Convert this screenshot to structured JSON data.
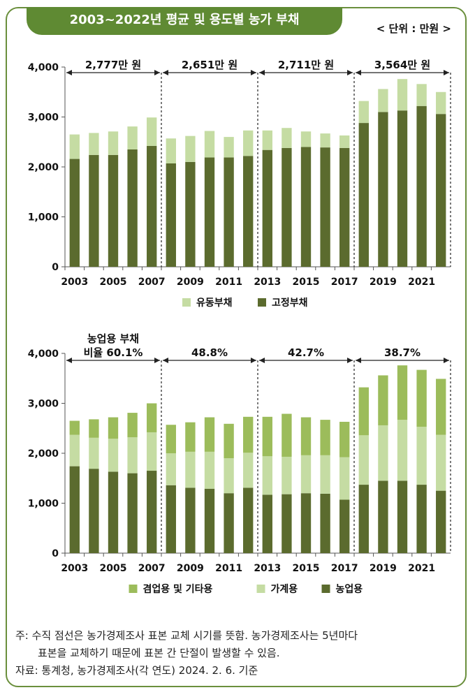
{
  "title": "2003~2022년 평균 및 용도별 농가 부채",
  "unit": "< 단위 : 만원 >",
  "colors": {
    "fixed_debt": "#5b6b2e",
    "current_debt": "#c5dca3",
    "agricultural": "#5b6b2e",
    "household": "#c5dca3",
    "side_business_other": "#9cbc5b",
    "frame": "#6a8f3c"
  },
  "chart_data": [
    {
      "type": "bar",
      "stacked": true,
      "x": [
        2003,
        2004,
        2005,
        2006,
        2007,
        2008,
        2009,
        2010,
        2011,
        2012,
        2013,
        2014,
        2015,
        2016,
        2017,
        2018,
        2019,
        2020,
        2021,
        2022
      ],
      "x_tick_labels": [
        "2003",
        "2005",
        "2007",
        "2009",
        "2011",
        "2013",
        "2015",
        "2017",
        "2019",
        "2021"
      ],
      "y_ticks": [
        "0",
        "1,000",
        "2,000",
        "3,000",
        "4,000"
      ],
      "ylim": [
        0,
        4000
      ],
      "series": [
        {
          "name": "고정부채",
          "color": "#5b6b2e",
          "values": [
            2160,
            2240,
            2240,
            2350,
            2420,
            2070,
            2100,
            2190,
            2190,
            2220,
            2340,
            2380,
            2400,
            2390,
            2380,
            2880,
            3100,
            3130,
            3220,
            3060
          ]
        },
        {
          "name": "유동부채",
          "color": "#c5dca3",
          "values": [
            490,
            440,
            470,
            460,
            570,
            500,
            520,
            530,
            410,
            510,
            390,
            400,
            310,
            280,
            250,
            440,
            460,
            630,
            440,
            440
          ]
        }
      ],
      "legend": [
        "유동부채",
        "고정부채"
      ],
      "legend_order": [
        1,
        0
      ],
      "periods": [
        {
          "start": 2003,
          "end": 2007,
          "label": "2,777만 원"
        },
        {
          "start": 2008,
          "end": 2012,
          "label": "2,651만 원"
        },
        {
          "start": 2013,
          "end": 2017,
          "label": "2,711만 원"
        },
        {
          "start": 2018,
          "end": 2022,
          "label": "3,564만 원"
        }
      ]
    },
    {
      "type": "bar",
      "stacked": true,
      "x": [
        2003,
        2004,
        2005,
        2006,
        2007,
        2008,
        2009,
        2010,
        2011,
        2012,
        2013,
        2014,
        2015,
        2016,
        2017,
        2018,
        2019,
        2020,
        2021,
        2022
      ],
      "x_tick_labels": [
        "2003",
        "2005",
        "2007",
        "2009",
        "2011",
        "2013",
        "2015",
        "2017",
        "2019",
        "2021"
      ],
      "y_ticks": [
        "0",
        "1,000",
        "2,000",
        "3,000",
        "4,000"
      ],
      "ylim": [
        0,
        4000
      ],
      "series": [
        {
          "name": "농업용",
          "color": "#5b6b2e",
          "values": [
            1740,
            1690,
            1630,
            1600,
            1650,
            1360,
            1310,
            1290,
            1200,
            1310,
            1170,
            1180,
            1200,
            1190,
            1070,
            1370,
            1450,
            1450,
            1370,
            1250
          ]
        },
        {
          "name": "가계용",
          "color": "#c5dca3",
          "values": [
            630,
            620,
            660,
            720,
            770,
            640,
            720,
            740,
            700,
            700,
            770,
            750,
            760,
            770,
            850,
            990,
            1110,
            1220,
            1160,
            1120
          ]
        },
        {
          "name": "겸업용 및 기타용",
          "color": "#9cbc5b",
          "values": [
            280,
            370,
            430,
            490,
            580,
            570,
            590,
            690,
            690,
            720,
            790,
            860,
            760,
            710,
            710,
            960,
            1000,
            1090,
            1140,
            1120
          ]
        }
      ],
      "legend": [
        "겸업용 및 기타용",
        "가계용",
        "농업용"
      ],
      "legend_order": [
        2,
        1,
        0
      ],
      "periods": [
        {
          "start": 2003,
          "end": 2007,
          "label": "농업용 부채\n비율 60.1%"
        },
        {
          "start": 2008,
          "end": 2012,
          "label": "48.8%"
        },
        {
          "start": 2013,
          "end": 2017,
          "label": "42.7%"
        },
        {
          "start": 2018,
          "end": 2022,
          "label": "38.7%"
        }
      ]
    }
  ],
  "notes": {
    "line1": "주: 수직 점선은 농가경제조사 표본 교체 시기를 뜻함. 농가경제조사는 5년마다",
    "line2": "표본을 교체하기 때문에 표본 간 단절이 발생할 수 있음.",
    "source": "자료: 통계청, 농가경제조사(각 연도) 2024. 2. 6. 기준"
  }
}
